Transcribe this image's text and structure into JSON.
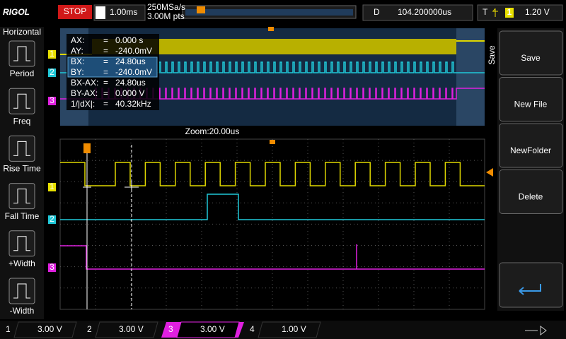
{
  "header": {
    "logo": "RIGOL",
    "status": "STOP",
    "timebase_label": "H",
    "timebase": "1.00ms",
    "sample_rate": "250MSa/s",
    "memory_depth": "3.00M pts",
    "delay_label": "D",
    "delay": "104.200000us",
    "trigger_label": "T",
    "trigger_source": "1",
    "trigger_level": "1.20 V"
  },
  "left_menu": {
    "title": "Horizontal",
    "items": [
      "Period",
      "Freq",
      "Rise Time",
      "Fall Time",
      "+Width",
      "-Width"
    ]
  },
  "cursor_readout": {
    "rows": [
      [
        "AX:",
        "=",
        "0.000 s"
      ],
      [
        "AY:",
        "=",
        "-240.0mV"
      ],
      [
        "BX:",
        "=",
        "24.80us"
      ],
      [
        "BY:",
        "=",
        "-240.0mV"
      ],
      [
        "BX-AX:",
        "=",
        "24.80us"
      ],
      [
        "BY-AX:",
        "=",
        "0.000 V"
      ],
      [
        "1/|dX|:",
        "=",
        "40.32kHz"
      ]
    ]
  },
  "zoom_label": "Zoom:20.00us",
  "channel_markers": [
    "1",
    "2",
    "3"
  ],
  "right_menu": {
    "title": "Save",
    "items": [
      "Save",
      "New File",
      "NewFolder",
      "Delete"
    ]
  },
  "channels": [
    {
      "label": "1",
      "scale": "3.00 V"
    },
    {
      "label": "2",
      "scale": "3.00 V"
    },
    {
      "label": "3",
      "scale": "3.00 V"
    },
    {
      "label": "4",
      "scale": "1.00 V"
    }
  ]
}
